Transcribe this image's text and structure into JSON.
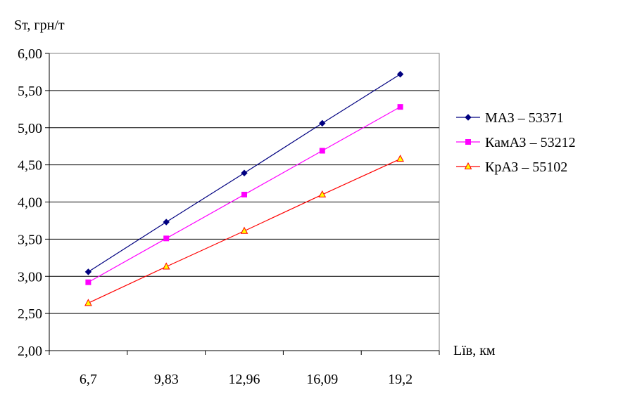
{
  "chart_data": {
    "type": "line",
    "title": "",
    "ylabel": "Sт, грн/т",
    "xlabel": "Lїв, км",
    "categories": [
      "6,7",
      "9,83",
      "12,96",
      "16,09",
      "19,2"
    ],
    "ylim": [
      2.0,
      6.0
    ],
    "yticks": [
      "2,00",
      "2,50",
      "3,00",
      "3,50",
      "4,00",
      "4,50",
      "5,00",
      "5,50",
      "6,00"
    ],
    "grid": true,
    "legend_position": "right",
    "series": [
      {
        "name": "МАЗ – 53371",
        "color": "#000080",
        "marker": "diamond",
        "values": [
          3.06,
          3.73,
          4.39,
          5.06,
          5.72
        ]
      },
      {
        "name": "КамАЗ – 53212",
        "color": "#ff00ff",
        "marker": "square",
        "values": [
          2.92,
          3.51,
          4.1,
          4.69,
          5.28
        ]
      },
      {
        "name": "КрАЗ – 55102",
        "color": "#ff0000",
        "marker": "triangle",
        "marker_fill": "#ffff00",
        "values": [
          2.64,
          3.13,
          3.61,
          4.1,
          4.58
        ]
      }
    ]
  }
}
